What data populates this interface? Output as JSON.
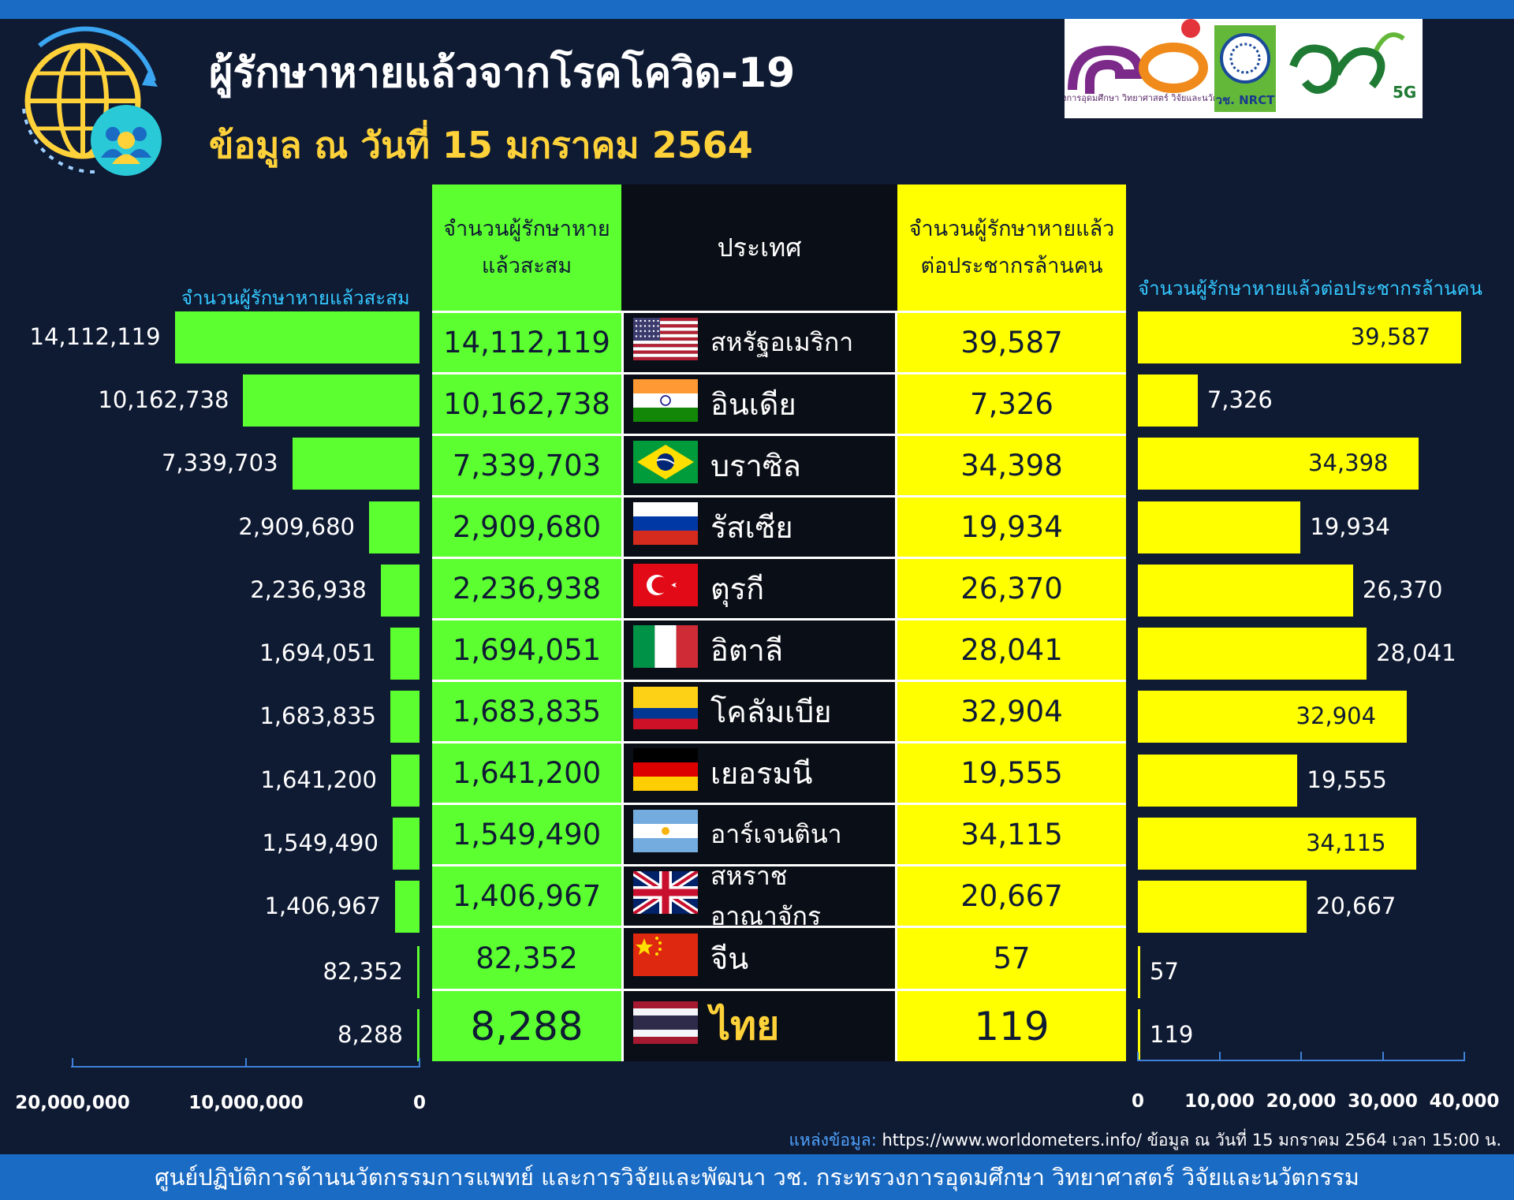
{
  "header": {
    "title": "ผู้รักษาหายแล้วจากโรคโควิด-19",
    "subtitle": "ข้อมูล ณ วันที่ 15 มกราคม 2564"
  },
  "sponsor": {
    "ministry_text": "กระทรวงการอุดมศึกษา วิทยาศาสตร์ วิจัยและนวัตกรรม",
    "nrct_text": "วช. NRCT",
    "fiveg_text": "5G"
  },
  "table_headers": {
    "cumulative": [
      "จำนวนผู้รักษาหาย",
      "แล้วสะสม"
    ],
    "country": "ประเทศ",
    "per_million": [
      "จำนวนผู้รักษาหายแล้ว",
      "ต่อประชากรล้านคน"
    ]
  },
  "chart_data": [
    {
      "type": "bar",
      "orientation": "horizontal",
      "direction": "right-to-left",
      "title": "จำนวนผู้รักษาหายแล้วสะสม",
      "categories": [
        "สหรัฐอเมริกา",
        "อินเดีย",
        "บราซิล",
        "รัสเซีย",
        "ตุรกี",
        "อิตาลี",
        "โคลัมเบีย",
        "เยอรมนี",
        "อาร์เจนตินา",
        "สหราชอาณาจักร",
        "จีน",
        "ไทย"
      ],
      "values": [
        14112119,
        10162738,
        7339703,
        2909680,
        2236938,
        1694051,
        1683835,
        1641200,
        1549490,
        1406967,
        82352,
        8288
      ],
      "labels": [
        "14,112,119",
        "10,162,738",
        "7,339,703",
        "2,909,680",
        "2,236,938",
        "1,694,051",
        "1,683,835",
        "1,641,200",
        "1,549,490",
        "1,406,967",
        "82,352",
        "8,288"
      ],
      "xlim": [
        0,
        20000000
      ],
      "tick_values": [
        20000000,
        10000000,
        0
      ],
      "tick_labels": [
        "20,000,000",
        "10,000,000",
        "0"
      ],
      "color": "#5cff2f"
    },
    {
      "type": "bar",
      "orientation": "horizontal",
      "title": "จำนวนผู้รักษาหายแล้วต่อประชากรล้านคน",
      "categories": [
        "สหรัฐอเมริกา",
        "อินเดีย",
        "บราซิล",
        "รัสเซีย",
        "ตุรกี",
        "อิตาลี",
        "โคลัมเบีย",
        "เยอรมนี",
        "อาร์เจนตินา",
        "สหราชอาณาจักร",
        "จีน",
        "ไทย"
      ],
      "values": [
        39587,
        7326,
        34398,
        19934,
        26370,
        28041,
        32904,
        19555,
        34115,
        20667,
        57,
        119
      ],
      "labels": [
        "39,587",
        "7,326",
        "34,398",
        "19,934",
        "26,370",
        "28,041",
        "32,904",
        "19,555",
        "34,115",
        "20,667",
        "57",
        "119"
      ],
      "xlim": [
        0,
        40000
      ],
      "tick_values": [
        0,
        10000,
        20000,
        30000,
        40000
      ],
      "tick_labels": [
        "0",
        "10,000",
        "20,000",
        "30,000",
        "40,000"
      ],
      "color": "#ffff00"
    }
  ],
  "rows": [
    {
      "flag": "usa",
      "country": "สหรัฐอเมริกา",
      "cumulative": "14,112,119",
      "per_million": "39,587"
    },
    {
      "flag": "india",
      "country": "อินเดีย",
      "cumulative": "10,162,738",
      "per_million": "7,326"
    },
    {
      "flag": "brazil",
      "country": "บราซิล",
      "cumulative": "7,339,703",
      "per_million": "34,398"
    },
    {
      "flag": "russia",
      "country": "รัสเซีย",
      "cumulative": "2,909,680",
      "per_million": "19,934"
    },
    {
      "flag": "turkey",
      "country": "ตุรกี",
      "cumulative": "2,236,938",
      "per_million": "26,370"
    },
    {
      "flag": "italy",
      "country": "อิตาลี",
      "cumulative": "1,694,051",
      "per_million": "28,041"
    },
    {
      "flag": "colombia",
      "country": "โคลัมเบีย",
      "cumulative": "1,683,835",
      "per_million": "32,904"
    },
    {
      "flag": "germany",
      "country": "เยอรมนี",
      "cumulative": "1,641,200",
      "per_million": "19,555"
    },
    {
      "flag": "argentina",
      "country": "อาร์เจนตินา",
      "cumulative": "1,549,490",
      "per_million": "34,115"
    },
    {
      "flag": "uk",
      "country": "สหราชอาณาจักร",
      "cumulative": "1,406,967",
      "per_million": "20,667"
    },
    {
      "flag": "china",
      "country": "จีน",
      "cumulative": "82,352",
      "per_million": "57"
    },
    {
      "flag": "thailand",
      "country": "ไทย",
      "cumulative": "8,288",
      "per_million": "119"
    }
  ],
  "source": {
    "label": "แหล่งข้อมูล:",
    "text": "https://www.worldometers.info/ ข้อมูล ณ วันที่ 15 มกราคม 2564 เวลา 15:00 น."
  },
  "footer": "ศูนย์ปฏิบัติการด้านนวัตกรรมการแพทย์ และการวิจัยและพัฒนา วช.   กระทรวงการอุดมศึกษา วิทยาศาสตร์ วิจัยและนวัตกรรม",
  "colors": {
    "background": "#0f1a33",
    "accent_blue": "#1a6bc4",
    "left_bar": "#5cff2f",
    "right_bar": "#ffff00",
    "title_yellow": "#ffd23a"
  }
}
